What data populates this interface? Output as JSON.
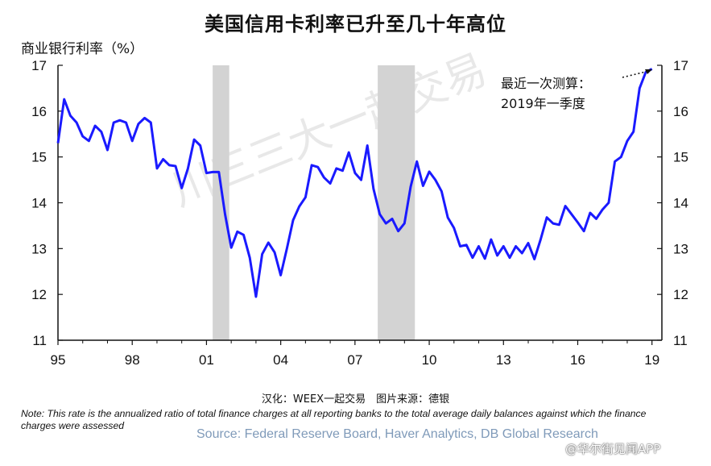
{
  "title": "美国信用卡利率已升至几十年高位",
  "unit_label": "商业银行利率（%）",
  "annotation": {
    "line1": "最近一次测算：",
    "line2": "2019年一季度"
  },
  "translator_text": "汉化：WEEX一起交易　图片来源：德银",
  "note": "Note: This rate is the annualized ratio of total finance charges at all reporting banks to the total average daily balances against which the finance charges were assessed",
  "source": "Source: Federal Reserve Board, Haver Analytics, DB Global Research",
  "brand_watermark": "@华尔街见闻APP",
  "watermark_text": "川三三大一起交易",
  "colors": {
    "line": "#1a1aff",
    "recession": "#d3d3d3",
    "source": "#7f9ab9"
  },
  "chart_data": {
    "type": "line",
    "x_tick_labels": [
      "95",
      "98",
      "01",
      "04",
      "07",
      "10",
      "13",
      "16",
      "19"
    ],
    "x_ticks": [
      1995,
      1998,
      2001,
      2004,
      2007,
      2010,
      2013,
      2016,
      2019
    ],
    "xlim": [
      1995,
      2019.4
    ],
    "ylim": [
      11,
      17
    ],
    "y_ticks": [
      11,
      12,
      13,
      14,
      15,
      16,
      17
    ],
    "y_axis_left": true,
    "y_axis_right": true,
    "grid": false,
    "recessions": [
      [
        2001.25,
        2001.92
      ],
      [
        2007.92,
        2009.42
      ]
    ],
    "series": [
      {
        "x": [
          1995.0,
          1995.25,
          1995.5,
          1995.75,
          1996.0,
          1996.25,
          1996.5,
          1996.75,
          1997.0,
          1997.25,
          1997.5,
          1997.75,
          1998.0,
          1998.25,
          1998.5,
          1998.75,
          1999.0,
          1999.25,
          1999.5,
          1999.75,
          2000.0,
          2000.25,
          2000.5,
          2000.75,
          2001.0,
          2001.25,
          2001.5,
          2001.75,
          2002.0,
          2002.25,
          2002.5,
          2002.75,
          2003.0,
          2003.25,
          2003.5,
          2003.75,
          2004.0,
          2004.25,
          2004.5,
          2004.75,
          2005.0,
          2005.25,
          2005.5,
          2005.75,
          2006.0,
          2006.25,
          2006.5,
          2006.75,
          2007.0,
          2007.25,
          2007.5,
          2007.75,
          2008.0,
          2008.25,
          2008.5,
          2008.75,
          2009.0,
          2009.25,
          2009.5,
          2009.75,
          2010.0,
          2010.25,
          2010.5,
          2010.75,
          2011.0,
          2011.25,
          2011.5,
          2011.75,
          2012.0,
          2012.25,
          2012.5,
          2012.75,
          2013.0,
          2013.25,
          2013.5,
          2013.75,
          2014.0,
          2014.25,
          2014.5,
          2014.75,
          2015.0,
          2015.25,
          2015.5,
          2015.75,
          2016.0,
          2016.25,
          2016.5,
          2016.75,
          2017.0,
          2017.25,
          2017.5,
          2017.75,
          2018.0,
          2018.25,
          2018.5,
          2018.75,
          2019.0
        ],
        "y": [
          15.3,
          16.26,
          15.9,
          15.75,
          15.45,
          15.35,
          15.68,
          15.55,
          15.15,
          15.75,
          15.8,
          15.75,
          15.35,
          15.72,
          15.85,
          15.75,
          14.75,
          14.95,
          14.82,
          14.8,
          14.32,
          14.75,
          15.38,
          15.25,
          14.65,
          14.67,
          14.67,
          13.75,
          13.02,
          13.37,
          13.3,
          12.8,
          11.95,
          12.88,
          13.13,
          12.92,
          12.42,
          13.0,
          13.62,
          13.92,
          14.12,
          14.82,
          14.78,
          14.55,
          14.42,
          14.75,
          14.7,
          15.1,
          14.65,
          14.5,
          15.25,
          14.3,
          13.75,
          13.55,
          13.65,
          13.38,
          13.55,
          14.35,
          14.9,
          14.37,
          14.68,
          14.5,
          14.25,
          13.68,
          13.45,
          13.05,
          13.08,
          12.8,
          13.05,
          12.78,
          13.2,
          12.85,
          13.05,
          12.8,
          13.05,
          12.9,
          13.12,
          12.77,
          13.2,
          13.68,
          13.55,
          13.52,
          13.93,
          13.75,
          13.57,
          13.38,
          13.78,
          13.65,
          13.85,
          14.0,
          14.9,
          15.0,
          15.35,
          15.55,
          16.5,
          16.85,
          16.92
        ]
      }
    ]
  }
}
